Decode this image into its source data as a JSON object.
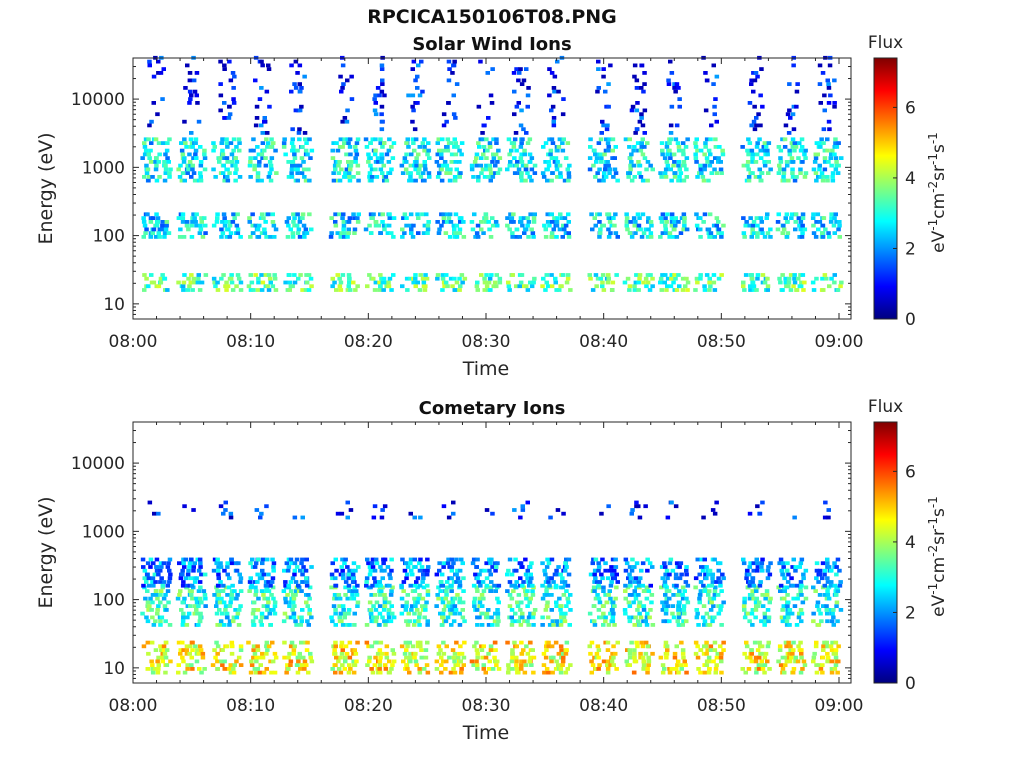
{
  "figure": {
    "title": "RPCICA150106T08.PNG"
  },
  "colorbar": {
    "label": "Flux",
    "unit_text": "eV-1cm-2sr-1s-1",
    "ticks": [
      "0",
      "2",
      "4",
      "6"
    ],
    "range": [
      0,
      7.4
    ],
    "colormap": "jet",
    "colors": [
      "#00007f",
      "#0000ff",
      "#007fff",
      "#00ffff",
      "#7fff7f",
      "#ffff00",
      "#ff7f00",
      "#ff0000",
      "#7f0000"
    ]
  },
  "chart_data": [
    {
      "type": "heatmap",
      "title": "Solar Wind Ions",
      "xlabel": "Time",
      "ylabel": "Energy (eV)",
      "x_ticks": [
        "08:00",
        "08:10",
        "08:20",
        "08:30",
        "08:40",
        "08:50",
        "09:00"
      ],
      "xlim": [
        "08:00",
        "09:00"
      ],
      "y_scale": "log",
      "y_ticks": [
        "10",
        "100",
        "1000",
        "10000"
      ],
      "ylim": [
        6,
        40000
      ],
      "pulse_times": [
        "08:02",
        "08:05",
        "08:08",
        "08:11",
        "08:14",
        "08:18",
        "08:21",
        "08:24",
        "08:27",
        "08:30",
        "08:33",
        "08:36",
        "08:40",
        "08:43",
        "08:46",
        "08:49",
        "08:53",
        "08:56",
        "08:59"
      ],
      "bands": [
        {
          "energy": [
            15,
            28
          ],
          "flux": 3.3
        },
        {
          "energy": [
            90,
            200
          ],
          "flux": 2.6
        },
        {
          "energy": [
            600,
            2500
          ],
          "flux": 2.7
        },
        {
          "energy": [
            3000,
            38000
          ],
          "flux": 1.0
        }
      ]
    },
    {
      "type": "heatmap",
      "title": "Cometary Ions",
      "xlabel": "Time",
      "ylabel": "Energy (eV)",
      "x_ticks": [
        "08:00",
        "08:10",
        "08:20",
        "08:30",
        "08:40",
        "08:50",
        "09:00"
      ],
      "xlim": [
        "08:00",
        "09:00"
      ],
      "y_scale": "log",
      "y_ticks": [
        "10",
        "100",
        "1000",
        "10000"
      ],
      "ylim": [
        6,
        40000
      ],
      "pulse_times": [
        "08:02",
        "08:05",
        "08:08",
        "08:11",
        "08:14",
        "08:18",
        "08:21",
        "08:24",
        "08:27",
        "08:30",
        "08:33",
        "08:36",
        "08:40",
        "08:43",
        "08:46",
        "08:49",
        "08:53",
        "08:56",
        "08:59"
      ],
      "bands": [
        {
          "energy": [
            8,
            25
          ],
          "flux": 4.6
        },
        {
          "energy": [
            40,
            150
          ],
          "flux": 3.0
        },
        {
          "energy": [
            150,
            400
          ],
          "flux": 2.0
        },
        {
          "energy": [
            1500,
            2600
          ],
          "flux": 1.0
        }
      ]
    }
  ]
}
